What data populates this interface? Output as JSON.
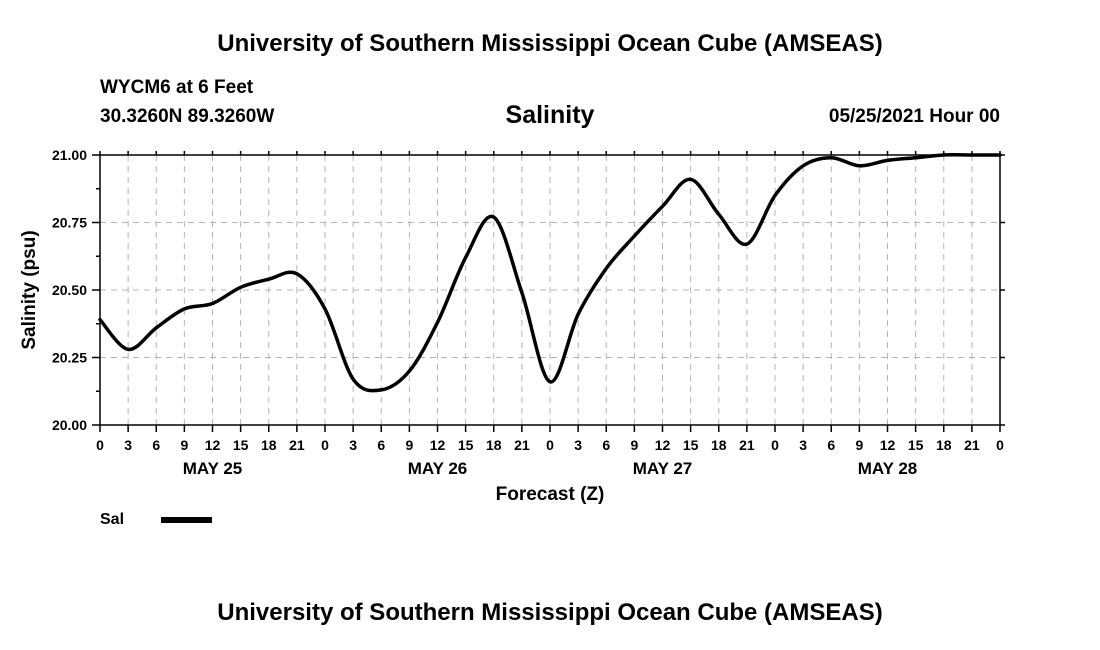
{
  "header": {
    "title": "University of Southern Mississippi Ocean Cube (AMSEAS)",
    "station": "WYCM6 at 6 Feet",
    "coords": "30.3260N  89.3260W",
    "run_time": "05/25/2021 Hour 00"
  },
  "footer": {
    "title": "University of Southern Mississippi Ocean Cube (AMSEAS)"
  },
  "legend": {
    "label": "Sal"
  },
  "chart_data": {
    "type": "line",
    "title": "Salinity",
    "xlabel": "Forecast (Z)",
    "ylabel": "Salinity (psu)",
    "ylim": [
      20.0,
      21.0
    ],
    "xlim": [
      0,
      96
    ],
    "yticks": [
      "20.00",
      "20.25",
      "20.50",
      "20.75",
      "21.00"
    ],
    "xtick_hours": [
      0,
      3,
      6,
      9,
      12,
      15,
      18,
      21,
      24,
      27,
      30,
      33,
      36,
      39,
      42,
      45,
      48,
      51,
      54,
      57,
      60,
      63,
      66,
      69,
      72,
      75,
      78,
      81,
      84,
      87,
      90,
      93,
      96
    ],
    "xtick_labels": [
      "0",
      "3",
      "6",
      "9",
      "12",
      "15",
      "18",
      "21",
      "0",
      "3",
      "6",
      "9",
      "12",
      "15",
      "18",
      "21",
      "0",
      "3",
      "6",
      "9",
      "12",
      "15",
      "18",
      "21",
      "0",
      "3",
      "6",
      "9",
      "12",
      "15",
      "18",
      "21",
      "0"
    ],
    "day_labels": [
      {
        "label": "MAY 25",
        "hour": 12
      },
      {
        "label": "MAY 26",
        "hour": 36
      },
      {
        "label": "MAY 27",
        "hour": 60
      },
      {
        "label": "MAY 28",
        "hour": 84
      }
    ],
    "grid": true,
    "series": [
      {
        "name": "Sal",
        "color": "#000000",
        "x": [
          0,
          3,
          6,
          9,
          12,
          15,
          18,
          21,
          24,
          27,
          30,
          33,
          36,
          39,
          42,
          45,
          48,
          51,
          54,
          57,
          60,
          63,
          66,
          69,
          72,
          75,
          78,
          81,
          84,
          87,
          90,
          93,
          96
        ],
        "values": [
          20.39,
          20.28,
          20.36,
          20.43,
          20.45,
          20.51,
          20.54,
          20.56,
          20.43,
          20.17,
          20.13,
          20.2,
          20.38,
          20.62,
          20.77,
          20.49,
          20.16,
          20.41,
          20.58,
          20.7,
          20.81,
          20.91,
          20.78,
          20.67,
          20.85,
          20.96,
          20.99,
          20.96,
          20.98,
          20.99,
          21.0,
          21.0,
          21.0
        ]
      }
    ]
  }
}
